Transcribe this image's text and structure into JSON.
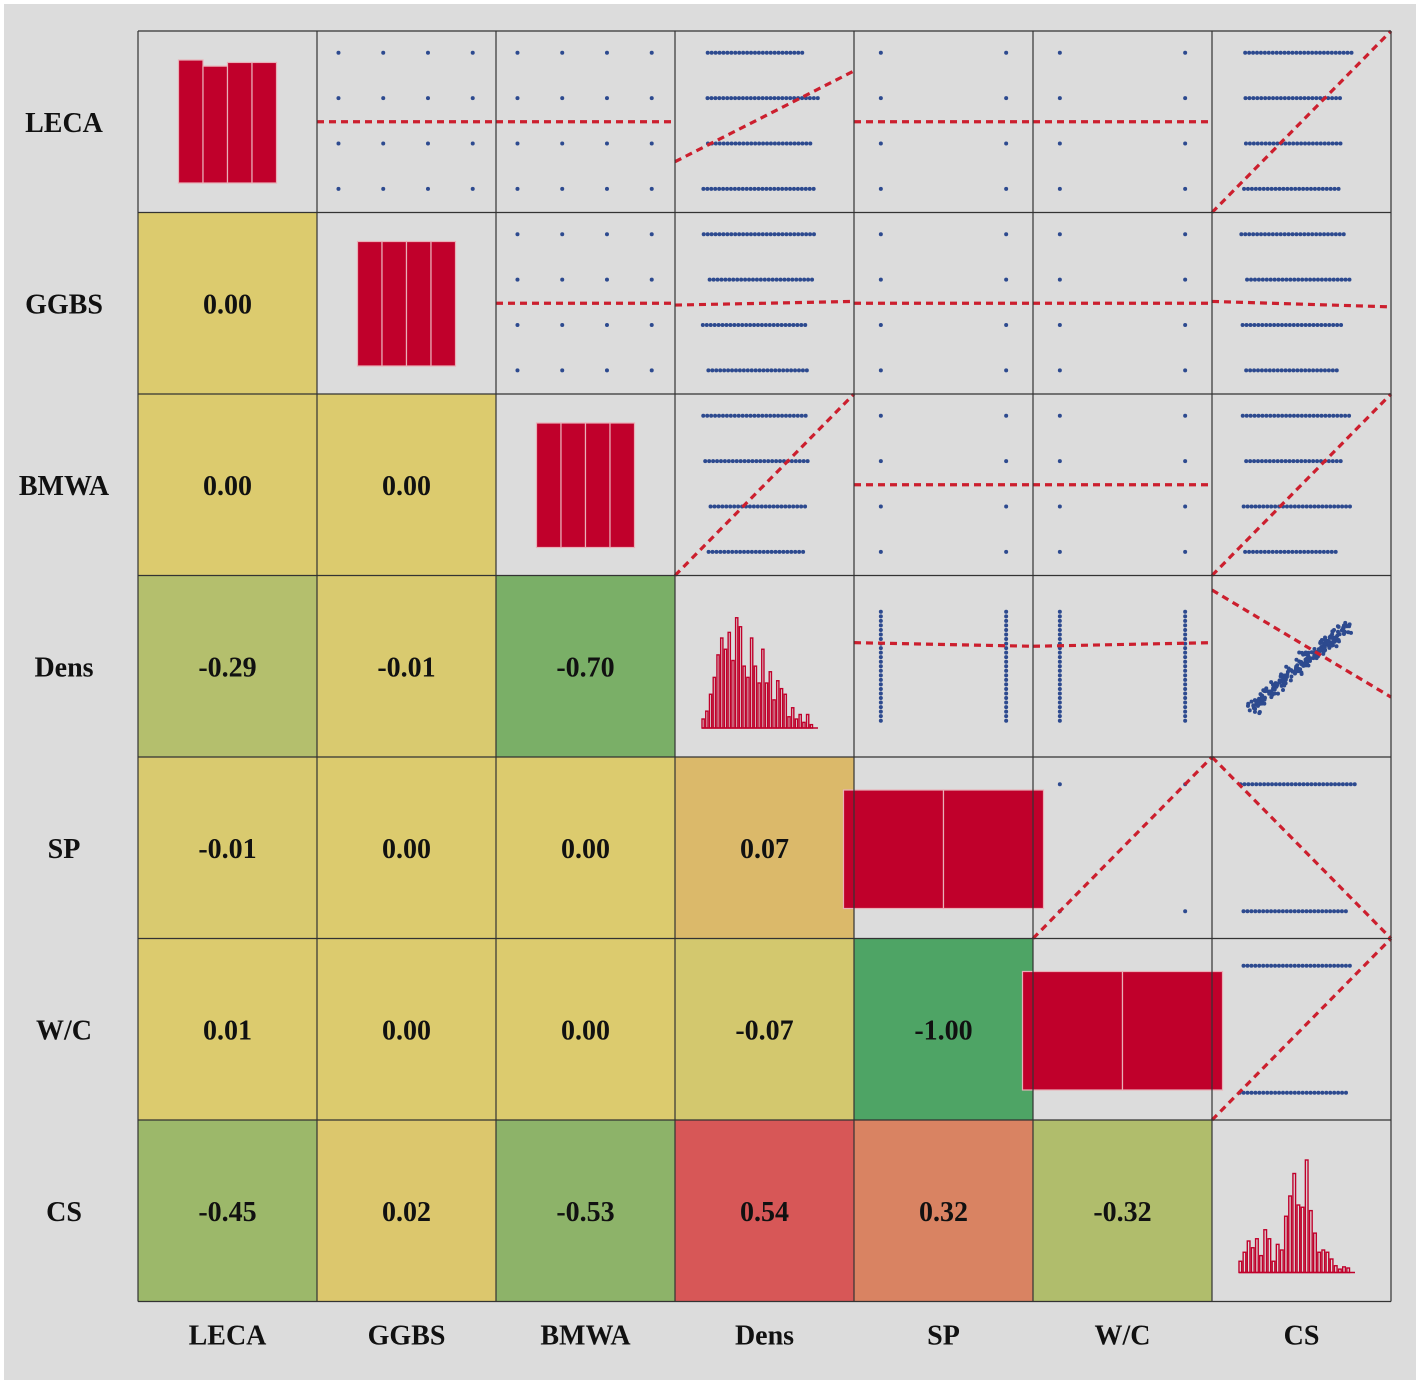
{
  "chart_data": {
    "type": "scatter-matrix",
    "title": "",
    "variables": [
      "LECA",
      "GGBS",
      "BMWA",
      "Dens",
      "SP",
      "W/C",
      "CS"
    ],
    "lower_triangle": "correlation coefficients (colored tiles)",
    "diagonal": "histograms",
    "upper_triangle": "scatter plots with dashed fitted trend line",
    "correlations": [
      {
        "row": "GGBS",
        "col": "LECA",
        "value": "0.00",
        "color": "#dccb6e"
      },
      {
        "row": "BMWA",
        "col": "LECA",
        "value": "0.00",
        "color": "#dccb6e"
      },
      {
        "row": "BMWA",
        "col": "GGBS",
        "value": "0.00",
        "color": "#dccb6e"
      },
      {
        "row": "Dens",
        "col": "LECA",
        "value": "-0.29",
        "color": "#b4bf6d"
      },
      {
        "row": "Dens",
        "col": "GGBS",
        "value": "-0.01",
        "color": "#d9ca6f"
      },
      {
        "row": "Dens",
        "col": "BMWA",
        "value": "-0.70",
        "color": "#7aaf67"
      },
      {
        "row": "SP",
        "col": "LECA",
        "value": "-0.01",
        "color": "#d9ca6f"
      },
      {
        "row": "SP",
        "col": "GGBS",
        "value": "0.00",
        "color": "#dccb6e"
      },
      {
        "row": "SP",
        "col": "BMWA",
        "value": "0.00",
        "color": "#dccb6e"
      },
      {
        "row": "SP",
        "col": "Dens",
        "value": "0.07",
        "color": "#dbb96a"
      },
      {
        "row": "W/C",
        "col": "LECA",
        "value": "0.01",
        "color": "#dccb6e"
      },
      {
        "row": "W/C",
        "col": "GGBS",
        "value": "0.00",
        "color": "#dccb6e"
      },
      {
        "row": "W/C",
        "col": "BMWA",
        "value": "0.00",
        "color": "#dccb6e"
      },
      {
        "row": "W/C",
        "col": "Dens",
        "value": "-0.07",
        "color": "#d3c86e"
      },
      {
        "row": "W/C",
        "col": "SP",
        "value": "-1.00",
        "color": "#4ea465"
      },
      {
        "row": "CS",
        "col": "LECA",
        "value": "-0.45",
        "color": "#9cb86a"
      },
      {
        "row": "CS",
        "col": "GGBS",
        "value": "0.02",
        "color": "#dcc76d"
      },
      {
        "row": "CS",
        "col": "BMWA",
        "value": "-0.53",
        "color": "#8db369"
      },
      {
        "row": "CS",
        "col": "Dens",
        "value": "0.54",
        "color": "#d75757"
      },
      {
        "row": "CS",
        "col": "SP",
        "value": "0.32",
        "color": "#d98362"
      },
      {
        "row": "CS",
        "col": "W/C",
        "value": "-0.32",
        "color": "#b0bd6c"
      }
    ],
    "histograms": [
      {
        "var": "LECA",
        "bars": [
          1.0,
          0.95,
          0.98,
          0.98
        ]
      },
      {
        "var": "GGBS",
        "bars": [
          1.0,
          1.0,
          1.0,
          1.0
        ]
      },
      {
        "var": "BMWA",
        "bars": [
          1.0,
          1.0,
          1.0,
          1.0
        ]
      },
      {
        "var": "Dens",
        "bars": [
          0.08,
          0.15,
          0.3,
          0.45,
          0.65,
          0.8,
          0.7,
          0.85,
          0.6,
          0.98,
          0.9,
          0.55,
          0.45,
          0.8,
          0.55,
          0.4,
          0.7,
          0.4,
          0.5,
          0.25,
          0.42,
          0.35,
          0.3,
          0.1,
          0.18,
          0.08,
          0.12,
          0.05,
          0.12,
          0.03
        ]
      },
      {
        "var": "SP",
        "bars": [
          1.0,
          1.0
        ]
      },
      {
        "var": "W/C",
        "bars": [
          1.0,
          1.0
        ]
      },
      {
        "var": "CS",
        "bars": [
          0.1,
          0.18,
          0.28,
          0.22,
          0.3,
          0.15,
          0.38,
          0.3,
          0.1,
          0.25,
          0.2,
          0.5,
          0.68,
          0.88,
          0.6,
          0.58,
          1.0,
          0.55,
          0.35,
          0.18,
          0.2,
          0.18,
          0.12,
          0.06,
          0.03,
          0.05,
          0.04
        ]
      }
    ],
    "trend_lines": [
      {
        "row": "LECA",
        "col": "GGBS",
        "from": 0.5,
        "to": 0.5
      },
      {
        "row": "LECA",
        "col": "BMWA",
        "from": 0.5,
        "to": 0.5
      },
      {
        "row": "LECA",
        "col": "Dens",
        "from": 0.72,
        "to": 0.22
      },
      {
        "row": "LECA",
        "col": "SP",
        "from": 0.5,
        "to": 0.5
      },
      {
        "row": "LECA",
        "col": "W/C",
        "from": 0.5,
        "to": 0.5
      },
      {
        "row": "LECA",
        "col": "CS",
        "from": 1.0,
        "to": 0.0
      },
      {
        "row": "GGBS",
        "col": "BMWA",
        "from": 0.5,
        "to": 0.5
      },
      {
        "row": "GGBS",
        "col": "Dens",
        "from": 0.51,
        "to": 0.49
      },
      {
        "row": "GGBS",
        "col": "SP",
        "from": 0.5,
        "to": 0.5
      },
      {
        "row": "GGBS",
        "col": "W/C",
        "from": 0.5,
        "to": 0.5
      },
      {
        "row": "GGBS",
        "col": "CS",
        "from": 0.49,
        "to": 0.52
      },
      {
        "row": "BMWA",
        "col": "Dens",
        "from": 1.0,
        "to": 0.0
      },
      {
        "row": "BMWA",
        "col": "SP",
        "from": 0.5,
        "to": 0.5
      },
      {
        "row": "BMWA",
        "col": "W/C",
        "from": 0.5,
        "to": 0.5
      },
      {
        "row": "BMWA",
        "col": "CS",
        "from": 1.0,
        "to": 0.0
      },
      {
        "row": "Dens",
        "col": "SP",
        "from": 0.37,
        "to": 0.39
      },
      {
        "row": "Dens",
        "col": "W/C",
        "from": 0.39,
        "to": 0.37
      },
      {
        "row": "Dens",
        "col": "CS",
        "from": 0.08,
        "to": 0.67
      },
      {
        "row": "SP",
        "col": "W/C",
        "from": 1.0,
        "to": 0.0
      },
      {
        "row": "SP",
        "col": "CS",
        "from": 0.0,
        "to": 1.0
      },
      {
        "row": "W/C",
        "col": "CS",
        "from": 1.0,
        "to": 0.0
      }
    ],
    "colors": {
      "bar": "#c0002b",
      "point": "#2d4a8f",
      "trend": "#cc1f2e",
      "cell_bg": "#dcdcdc",
      "grid": "#333333"
    }
  }
}
